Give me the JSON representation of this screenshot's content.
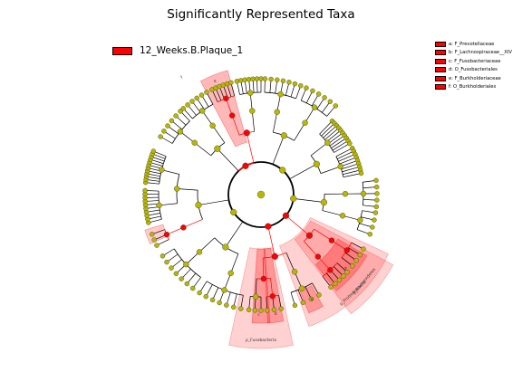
{
  "chart_data": {
    "type": "cladogram",
    "title": "Significantly Represented Taxa",
    "groups": [
      {
        "name": "12_Weeks.B.Plaque_1",
        "color": "#ff0000"
      }
    ],
    "marker_color": "#b8b800",
    "highlight_color": "#ff0000",
    "clades": [
      {
        "label": "p_Bacteroidetes",
        "highlighted": true
      },
      {
        "label": "a",
        "highlighted": true
      },
      {
        "label": "d",
        "highlighted": true
      },
      {
        "label": "p_Fusobacteria",
        "highlighted": true
      },
      {
        "label": "p_Proteobacteria",
        "highlighted": true
      },
      {
        "label": "b",
        "highlighted": true
      },
      {
        "label": "c",
        "highlighted": true
      },
      {
        "label": "e",
        "highlighted": true
      },
      {
        "label": "f",
        "highlighted": true
      }
    ],
    "taxa_legend": [
      "a: F_Prevotellaceae",
      "b: F_Lachnospiraceae__XIV",
      "c: F_Fusobacteriaceae",
      "d: O_Fusobacteriales",
      "e: F_Burkholderiaceae",
      "f: O_Burkholderiales"
    ]
  }
}
